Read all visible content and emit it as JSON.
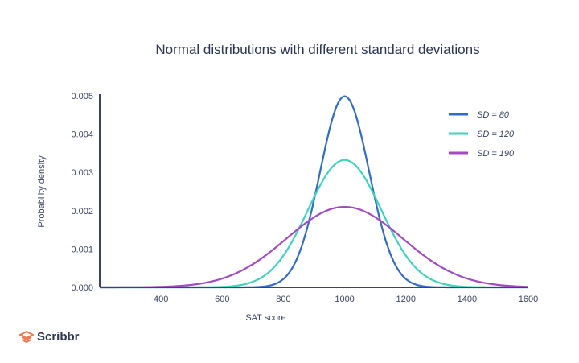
{
  "chart_data": {
    "type": "line",
    "title": "Normal distributions with different standard deviations",
    "xlabel": "SAT score",
    "ylabel": "Probability density",
    "xlim": [
      200,
      1600
    ],
    "ylim": [
      0,
      0.005
    ],
    "xticks": [
      "400",
      "600",
      "800",
      "1000",
      "1200",
      "1400",
      "1600"
    ],
    "yticks": [
      "0.000",
      "0.001",
      "0.002",
      "0.003",
      "0.004",
      "0.005"
    ],
    "grid": false,
    "legend": "top-right",
    "mean": 1000,
    "series": [
      {
        "name": "SD = 80",
        "sd": 80,
        "color": "#2f6cc2"
      },
      {
        "name": "SD = 120",
        "sd": 120,
        "color": "#3fd3bd"
      },
      {
        "name": "SD = 190",
        "sd": 190,
        "color": "#a24ac0"
      }
    ]
  },
  "brand": {
    "name": "Scribbr",
    "color": "#f07a4f"
  }
}
